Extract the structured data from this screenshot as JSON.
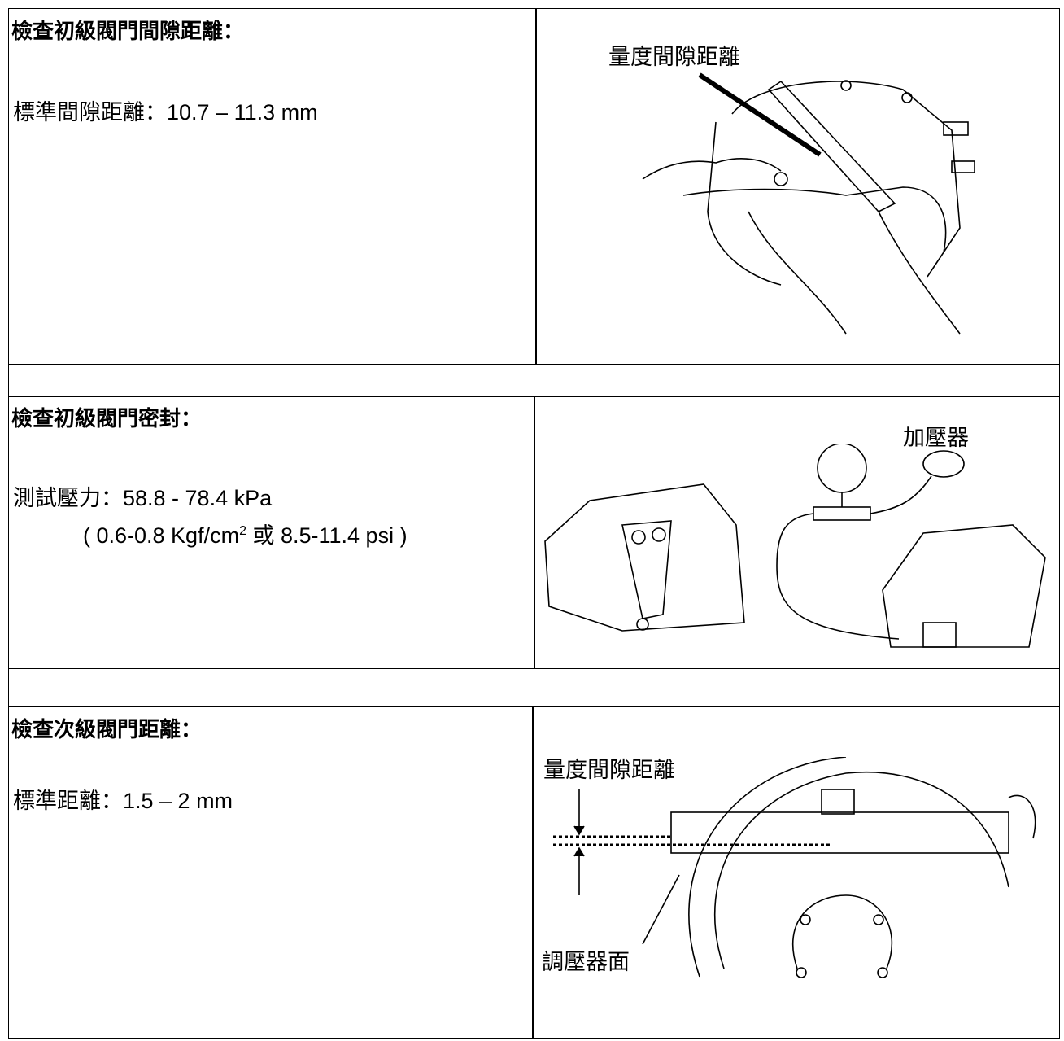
{
  "rows": [
    {
      "title": "檢查初級閥門間隙距離：",
      "specs": [
        "標準間隙距離：10.7 – 11.3 mm"
      ],
      "image_labels": [
        "量度間隙距離"
      ]
    },
    {
      "title": "檢查初級閥門密封：",
      "specs": [
        "測試壓力：58.8 - 78.4 kPa"
      ],
      "spec_pressure_alt": [
        "( 0.6-0.8 Kgf/cm",
        "2",
        " 或  8.5-11.4 psi )"
      ],
      "image_labels": [
        "加壓器"
      ]
    },
    {
      "title": "檢查次級閥門距離：",
      "specs": [
        "標準距離：1.5 – 2 mm"
      ],
      "image_labels": [
        "量度間隙距離",
        "調壓器面"
      ]
    }
  ]
}
